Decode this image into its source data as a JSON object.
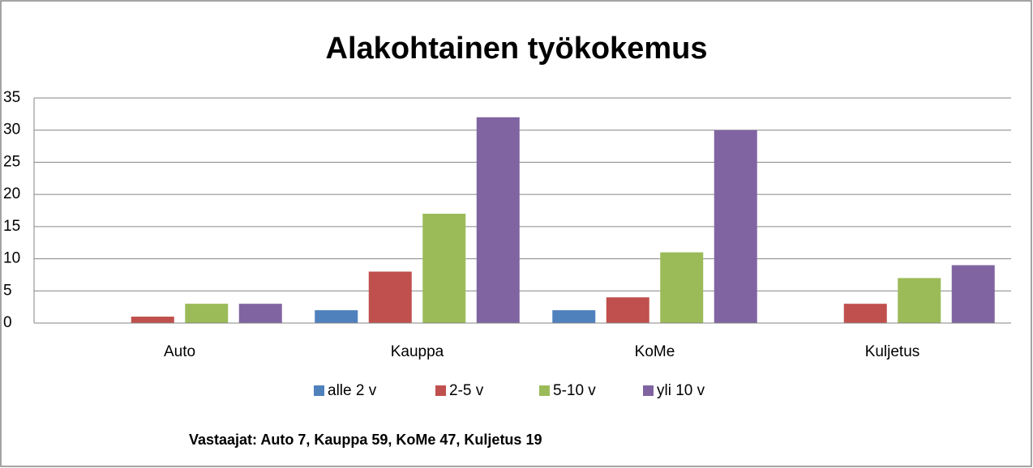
{
  "chart_data": {
    "type": "bar",
    "title": "Alakohtainen työkokemus",
    "categories": [
      "Auto",
      "Kauppa",
      "KoMe",
      "Kuljetus"
    ],
    "series": [
      {
        "name": "alle 2 v",
        "color": "#4f81bd",
        "values": [
          0,
          2,
          2,
          0
        ]
      },
      {
        "name": "2-5 v",
        "color": "#c0504d",
        "values": [
          1,
          8,
          4,
          3
        ]
      },
      {
        "name": "5-10 v",
        "color": "#9bbb59",
        "values": [
          3,
          17,
          11,
          7
        ]
      },
      {
        "name": "yli 10 v",
        "color": "#8064a2",
        "values": [
          3,
          32,
          30,
          9
        ]
      }
    ],
    "ylim": [
      0,
      35
    ],
    "yticks": [
      0,
      5,
      10,
      15,
      20,
      25,
      30,
      35
    ],
    "grid": true,
    "legend": "bottom",
    "annotation": "Vastaajat: Auto 7, Kauppa 59, KoMe 47, Kuljetus 19"
  }
}
